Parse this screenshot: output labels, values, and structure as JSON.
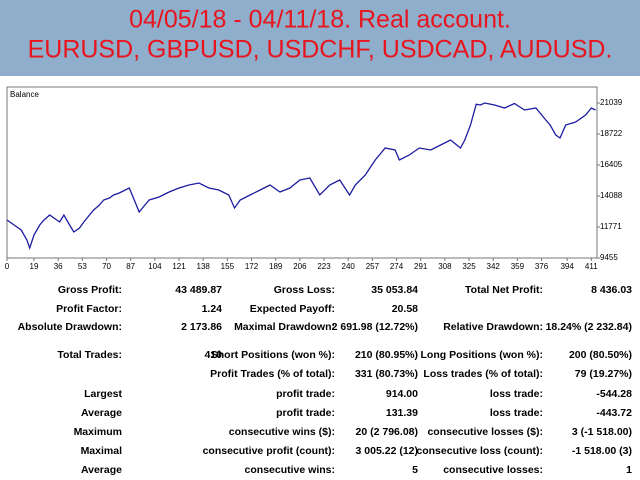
{
  "header": {
    "lines": [
      "04/05/18 - 04/11/18. Real account.",
      "EURUSD, GBPUSD, USDCHF, USDCAD, AUDUSD."
    ]
  },
  "chart_data": {
    "type": "line",
    "title": "Balance",
    "color": "#1c1ca0",
    "x": [
      0,
      5,
      10,
      14,
      16,
      19,
      23,
      26,
      30,
      33,
      37,
      40,
      44,
      47,
      51,
      54,
      58,
      61,
      65,
      68,
      72,
      75,
      79,
      86,
      93,
      97,
      100,
      107,
      114,
      121,
      128,
      135,
      142,
      149,
      156,
      160,
      164,
      171,
      178,
      185,
      192,
      199,
      206,
      213,
      220,
      227,
      234,
      241,
      245,
      252,
      259,
      266,
      273,
      276,
      283,
      290,
      298,
      305,
      312,
      319,
      322,
      326,
      330,
      333,
      336,
      343,
      350,
      357,
      364,
      372,
      379,
      382,
      386,
      389,
      393,
      400,
      407,
      411,
      414
    ],
    "values": [
      12295,
      11921,
      11548,
      10800,
      10202,
      11174,
      11921,
      12295,
      12669,
      12445,
      12146,
      12669,
      11921,
      11398,
      11697,
      12146,
      12669,
      13043,
      13416,
      13790,
      13939,
      14163,
      14313,
      14687,
      12893,
      13416,
      13790,
      14014,
      14388,
      14687,
      14911,
      15061,
      14687,
      14537,
      14163,
      13192,
      13790,
      14163,
      14537,
      14911,
      14388,
      14687,
      15285,
      15434,
      14163,
      14911,
      15285,
      14163,
      14911,
      15658,
      16780,
      17677,
      17527,
      16780,
      17153,
      17677,
      17527,
      17901,
      18274,
      17677,
      18274,
      19395,
      20950,
      20890,
      21039,
      20890,
      20666,
      21000,
      20516,
      20666,
      19769,
      19395,
      18648,
      18424,
      19395,
      19619,
      20142,
      20666,
      20516
    ],
    "xlim": [
      0,
      415
    ],
    "xticks": [
      0,
      19,
      36,
      53,
      70,
      87,
      104,
      121,
      138,
      155,
      172,
      189,
      206,
      223,
      240,
      257,
      274,
      291,
      308,
      325,
      342,
      359,
      376,
      394,
      411
    ],
    "ylim": [
      9455,
      22236
    ],
    "yticks": [
      9455,
      11771,
      14088,
      16405,
      18722,
      21039
    ]
  },
  "table": {
    "rows": [
      [
        "Gross Profit:",
        "43 489.87",
        "Gross Loss:",
        "35 053.84",
        "Total Net Profit:",
        "8 436.03"
      ],
      [
        "Profit Factor:",
        "1.24",
        "Expected Payoff:",
        "20.58",
        null,
        null
      ],
      [
        "Absolute Drawdown:",
        "2 173.86",
        "Maximal Drawdown:",
        "2 691.98 (12.72%)",
        "Relative Drawdown:",
        "18.24% (2 232.84)"
      ],
      [
        "Total Trades:",
        "410",
        "Short Positions (won %):",
        "210 (80.95%)",
        "Long Positions (won %):",
        "200 (80.50%)"
      ],
      [
        null,
        null,
        "Profit Trades (% of total):",
        "331 (80.73%)",
        "Loss trades (% of total):",
        "79 (19.27%)"
      ],
      [
        "Largest",
        null,
        "profit trade:",
        "914.00",
        "loss trade:",
        "-544.28"
      ],
      [
        "Average",
        null,
        "profit trade:",
        "131.39",
        "loss trade:",
        "-443.72"
      ],
      [
        "Maximum",
        null,
        "consecutive wins ($):",
        "20 (2 796.08)",
        "consecutive losses ($):",
        "3 (-1 518.00)"
      ],
      [
        "Maximal",
        null,
        "consecutive profit (count):",
        "3 005.22 (12)",
        "consecutive loss (count):",
        "-1 518.00 (3)"
      ],
      [
        "Average",
        null,
        "consecutive wins:",
        "5",
        "consecutive losses:",
        "1"
      ]
    ]
  }
}
